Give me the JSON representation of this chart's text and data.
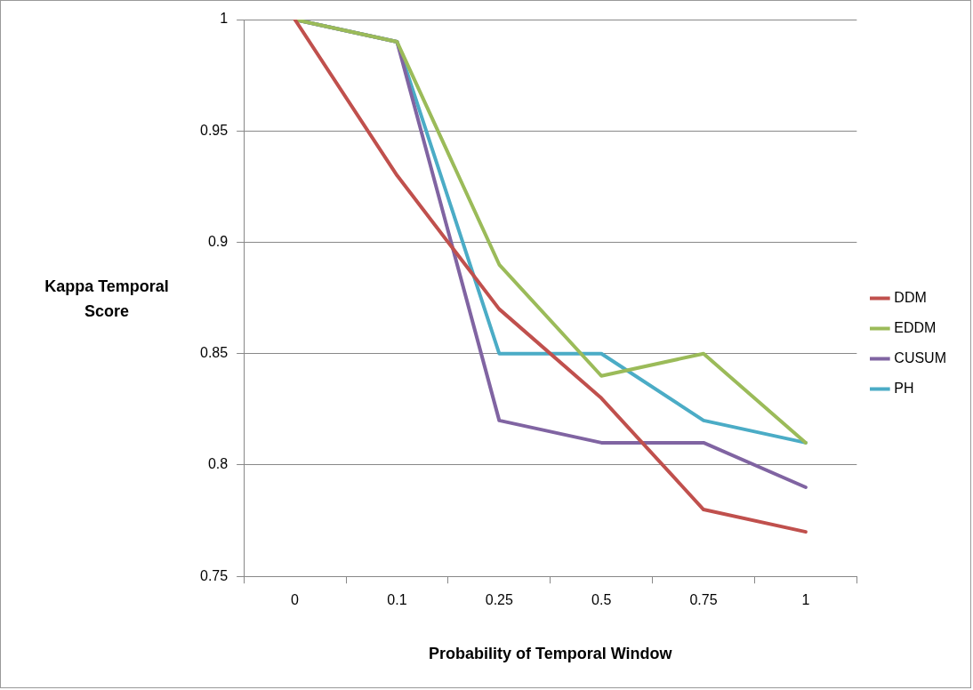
{
  "chart_data": {
    "type": "line",
    "xlabel": "Probability of Temporal Window",
    "ylabel": "Kappa Temporal Score",
    "categories": [
      "0",
      "0.1",
      "0.25",
      "0.5",
      "0.75",
      "1"
    ],
    "series": [
      {
        "name": "DDM",
        "color": "#c0504d",
        "values": [
          1,
          0.93,
          0.87,
          0.83,
          0.78,
          0.77
        ]
      },
      {
        "name": "EDDM",
        "color": "#9bbb59",
        "values": [
          1,
          0.99,
          0.89,
          0.84,
          0.85,
          0.81
        ]
      },
      {
        "name": "CUSUM",
        "color": "#8064a2",
        "values": [
          1,
          0.99,
          0.82,
          0.81,
          0.81,
          0.79
        ]
      },
      {
        "name": "PH",
        "color": "#4bacc6",
        "values": [
          1,
          0.99,
          0.85,
          0.85,
          0.82,
          0.81
        ]
      }
    ],
    "ylim": [
      0.75,
      1
    ],
    "yticks": [
      0.75,
      0.8,
      0.85,
      0.9,
      0.95,
      1
    ],
    "grid": "y",
    "legend": "right",
    "marker": "none",
    "line_style": "solid"
  }
}
